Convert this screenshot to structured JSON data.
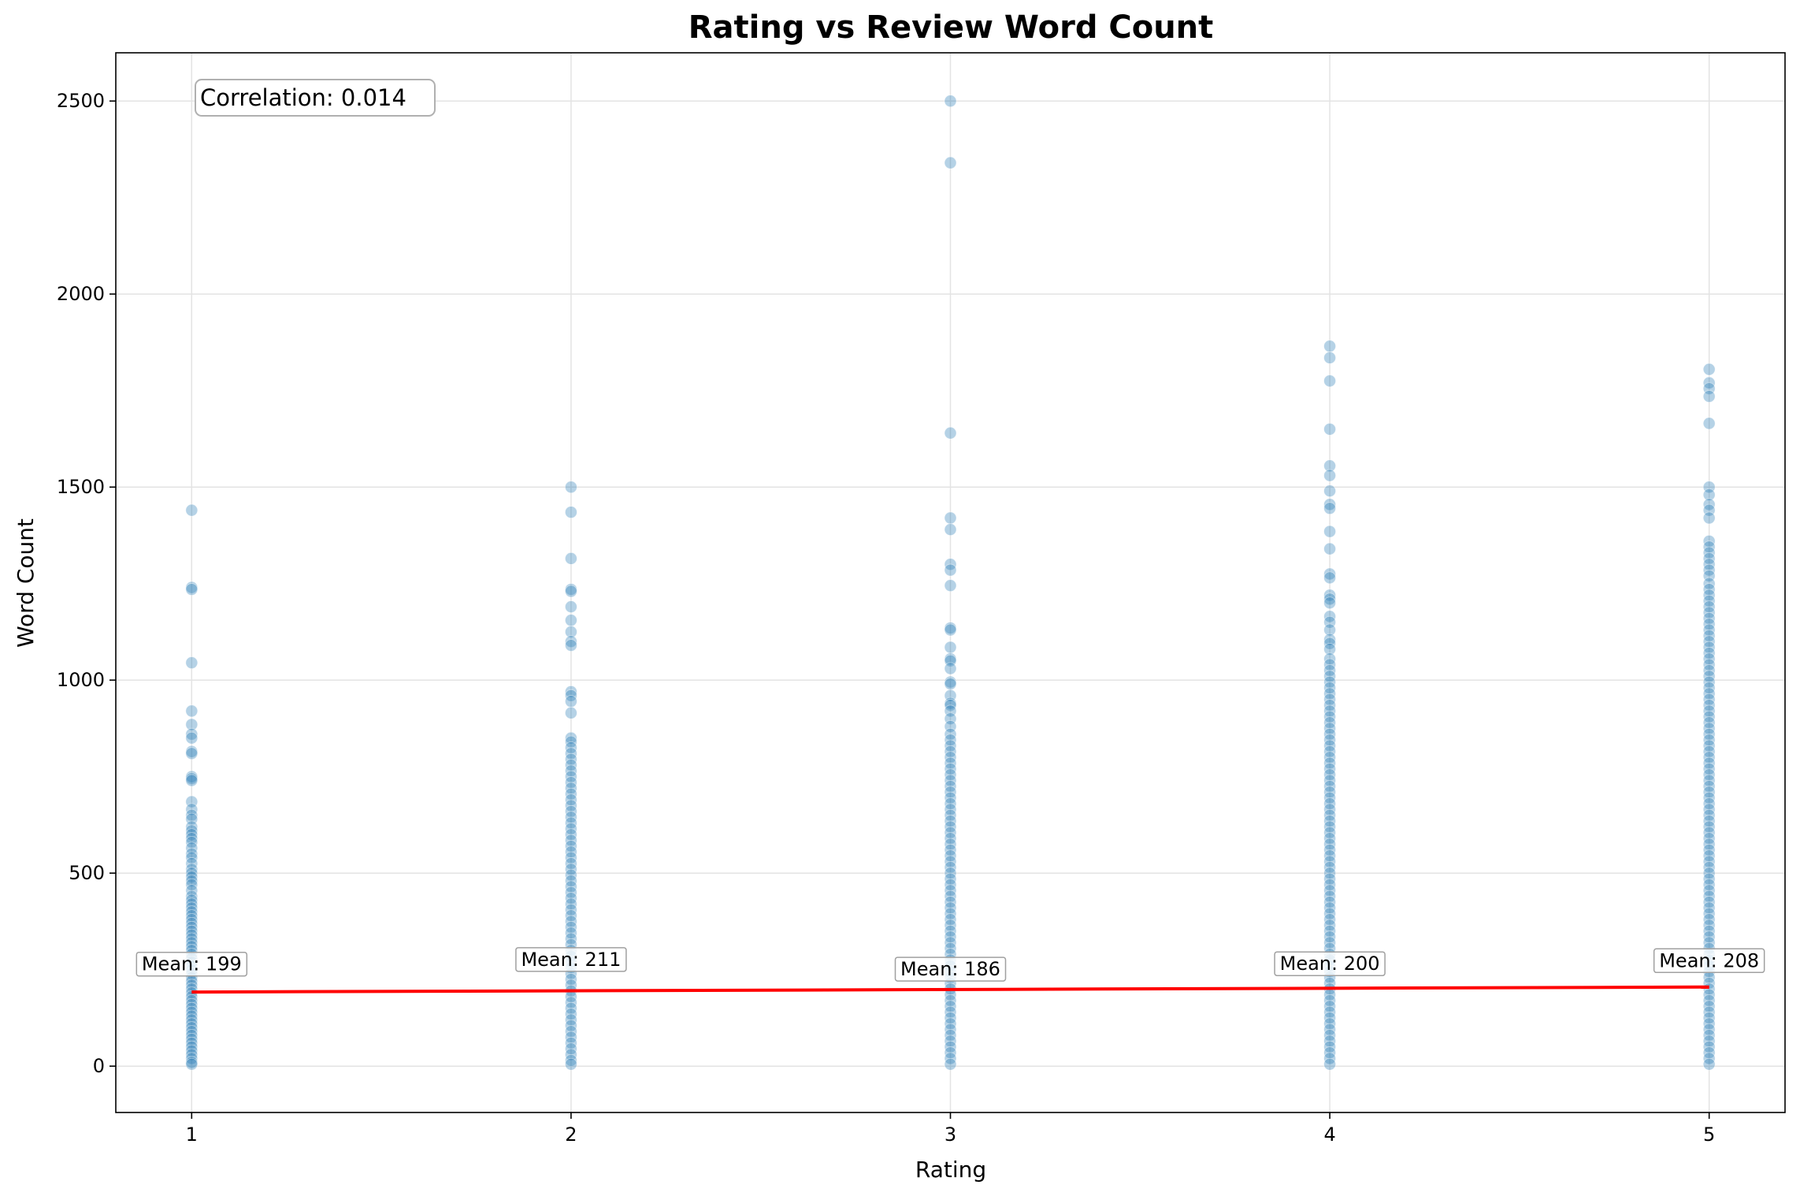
{
  "chart_data": {
    "type": "scatter",
    "title": "Rating vs Review Word Count",
    "xlabel": "Rating",
    "ylabel": "Word Count",
    "xlim": [
      0.8,
      5.2
    ],
    "ylim": [
      -120,
      2625
    ],
    "xticks": [
      1,
      2,
      3,
      4,
      5
    ],
    "yticks": [
      0,
      500,
      1000,
      1500,
      2000,
      2500
    ],
    "grid": true,
    "point_color": "#1f77b4",
    "trend_color": "#ff0000",
    "annotation": "Correlation: 0.014",
    "trend_line": {
      "x": [
        1,
        5
      ],
      "y": [
        192,
        205
      ]
    },
    "means": [
      {
        "rating": 1,
        "label": "Mean: 199",
        "value": 199
      },
      {
        "rating": 2,
        "label": "Mean: 211",
        "value": 211
      },
      {
        "rating": 3,
        "label": "Mean: 186",
        "value": 186
      },
      {
        "rating": 4,
        "label": "Mean: 200",
        "value": 200
      },
      {
        "rating": 5,
        "label": "Mean: 208",
        "value": 208
      }
    ],
    "series": [
      {
        "x": 1,
        "values": [
          1440,
          1240,
          1235,
          1045,
          920,
          885,
          860,
          850,
          815,
          810,
          750,
          745,
          740,
          685,
          665,
          650,
          640,
          620,
          610,
          600,
          590,
          580,
          565,
          550,
          540,
          525,
          510,
          500,
          490,
          480,
          470,
          455,
          440,
          430,
          420,
          410,
          400,
          390,
          380,
          370,
          360,
          350,
          340,
          330,
          320,
          310,
          300,
          290,
          280,
          270,
          260,
          250,
          240,
          230,
          220,
          210,
          200,
          190,
          180,
          170,
          160,
          150,
          140,
          130,
          120,
          110,
          100,
          90,
          80,
          70,
          60,
          50,
          40,
          30,
          20,
          10,
          5
        ]
      },
      {
        "x": 2,
        "values": [
          1500,
          1435,
          1315,
          1235,
          1230,
          1190,
          1155,
          1125,
          1100,
          1090,
          970,
          960,
          945,
          915,
          850,
          840,
          825,
          810,
          795,
          780,
          765,
          750,
          735,
          720,
          705,
          690,
          675,
          660,
          645,
          630,
          615,
          600,
          585,
          570,
          555,
          540,
          525,
          510,
          495,
          480,
          465,
          450,
          435,
          420,
          405,
          390,
          375,
          360,
          345,
          330,
          315,
          300,
          285,
          270,
          255,
          240,
          225,
          210,
          195,
          180,
          165,
          150,
          135,
          120,
          105,
          90,
          75,
          60,
          45,
          30,
          15,
          5
        ]
      },
      {
        "x": 3,
        "values": [
          2500,
          2340,
          1640,
          1420,
          1390,
          1300,
          1285,
          1245,
          1135,
          1130,
          1085,
          1055,
          1050,
          1030,
          995,
          990,
          960,
          940,
          935,
          920,
          900,
          880,
          860,
          845,
          830,
          815,
          800,
          785,
          770,
          755,
          740,
          725,
          710,
          695,
          680,
          665,
          650,
          635,
          620,
          605,
          590,
          575,
          560,
          545,
          530,
          515,
          500,
          485,
          470,
          455,
          440,
          425,
          410,
          395,
          380,
          365,
          350,
          335,
          320,
          305,
          290,
          275,
          260,
          245,
          230,
          215,
          200,
          185,
          170,
          155,
          140,
          125,
          110,
          95,
          80,
          65,
          50,
          35,
          20,
          5
        ]
      },
      {
        "x": 4,
        "values": [
          1865,
          1835,
          1775,
          1650,
          1555,
          1530,
          1490,
          1455,
          1445,
          1385,
          1340,
          1275,
          1265,
          1220,
          1210,
          1200,
          1165,
          1150,
          1130,
          1105,
          1095,
          1080,
          1055,
          1040,
          1025,
          1010,
          995,
          980,
          965,
          950,
          935,
          920,
          905,
          890,
          875,
          860,
          845,
          830,
          815,
          800,
          785,
          770,
          755,
          740,
          725,
          710,
          695,
          680,
          665,
          650,
          635,
          620,
          605,
          590,
          575,
          560,
          545,
          530,
          515,
          500,
          485,
          470,
          455,
          440,
          425,
          410,
          395,
          380,
          365,
          350,
          335,
          320,
          305,
          290,
          275,
          260,
          245,
          230,
          215,
          200,
          185,
          170,
          155,
          140,
          125,
          110,
          95,
          80,
          65,
          50,
          35,
          20,
          5
        ]
      },
      {
        "x": 5,
        "values": [
          1805,
          1770,
          1755,
          1735,
          1665,
          1500,
          1480,
          1455,
          1440,
          1420,
          1360,
          1345,
          1330,
          1315,
          1300,
          1285,
          1270,
          1250,
          1235,
          1220,
          1205,
          1190,
          1175,
          1160,
          1145,
          1130,
          1115,
          1100,
          1085,
          1070,
          1055,
          1040,
          1025,
          1010,
          995,
          980,
          965,
          950,
          935,
          920,
          905,
          890,
          875,
          860,
          845,
          830,
          815,
          800,
          785,
          770,
          755,
          740,
          725,
          710,
          695,
          680,
          665,
          650,
          635,
          620,
          605,
          590,
          575,
          560,
          545,
          530,
          515,
          500,
          485,
          470,
          455,
          440,
          425,
          410,
          395,
          380,
          365,
          350,
          335,
          320,
          305,
          290,
          275,
          260,
          245,
          230,
          215,
          200,
          185,
          170,
          155,
          140,
          125,
          110,
          95,
          80,
          65,
          50,
          35,
          20,
          5
        ]
      }
    ]
  }
}
